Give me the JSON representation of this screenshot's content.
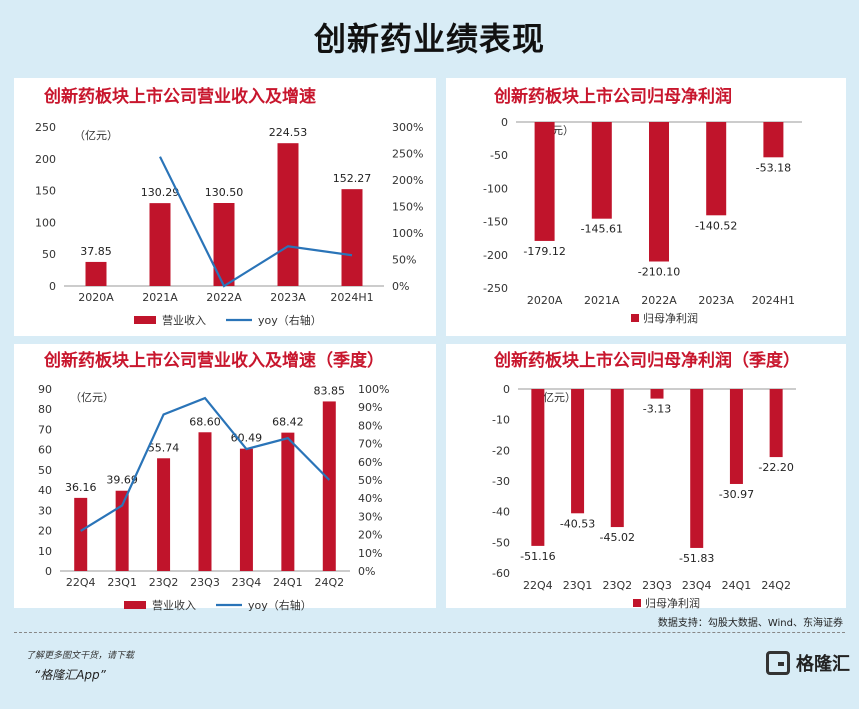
{
  "title": "创新药业绩表现",
  "source": "数据支持：勾股大数据、Wind、东海证券",
  "footer": {
    "note": "了解更多图文干货，请下载",
    "app": "“格隆汇App”",
    "logo": "格隆汇"
  },
  "chart_data": [
    {
      "type": "bar",
      "title": "创新药板块上市公司营业收入及增速",
      "unit": "（亿元）",
      "categories": [
        "2020A",
        "2021A",
        "2022A",
        "2023A",
        "2024H1"
      ],
      "series": [
        {
          "name": "营业收入",
          "values": [
            37.85,
            130.29,
            130.5,
            224.53,
            152.27
          ],
          "color": "#c0142b",
          "axis": "left"
        },
        {
          "name": "yoy（右轴）",
          "type": "line",
          "values": [
            null,
            244,
            0,
            75,
            58
          ],
          "color": "#2a74b8",
          "axis": "right"
        }
      ],
      "ylim": [
        0,
        250
      ],
      "yticks": [
        0,
        50,
        100,
        150,
        200,
        250
      ],
      "y2lim": [
        0,
        300
      ],
      "y2ticks": [
        "0%",
        "50%",
        "100%",
        "150%",
        "200%",
        "250%",
        "300%"
      ],
      "legend": "bottom"
    },
    {
      "type": "bar",
      "title": "创新药板块上市公司归母净利润",
      "unit": "（亿元）",
      "categories": [
        "2020A",
        "2021A",
        "2022A",
        "2023A",
        "2024H1"
      ],
      "series": [
        {
          "name": "归母净利润",
          "values": [
            -179.12,
            -145.61,
            -210.1,
            -140.52,
            -53.18
          ],
          "color": "#c0142b"
        }
      ],
      "labels": [
        "-179.12",
        "-145.61",
        "-210.10",
        "-140.52",
        "-53.18"
      ],
      "ylim": [
        -250,
        0
      ],
      "yticks": [
        0,
        -50,
        -100,
        -150,
        -200,
        -250
      ],
      "legend": "bottom"
    },
    {
      "type": "bar",
      "title": "创新药板块上市公司营业收入及增速（季度）",
      "unit": "（亿元）",
      "categories": [
        "22Q4",
        "23Q1",
        "23Q2",
        "23Q3",
        "23Q4",
        "24Q1",
        "24Q2"
      ],
      "series": [
        {
          "name": "营业收入",
          "values": [
            36.16,
            39.69,
            55.74,
            68.6,
            60.49,
            68.42,
            83.85
          ],
          "color": "#c0142b",
          "axis": "left"
        },
        {
          "name": "yoy（右轴）",
          "type": "line",
          "values": [
            22,
            36,
            86,
            95,
            67,
            73,
            50
          ],
          "color": "#2a74b8",
          "axis": "right"
        }
      ],
      "ylim": [
        0,
        90
      ],
      "yticks": [
        0,
        10,
        20,
        30,
        40,
        50,
        60,
        70,
        80,
        90
      ],
      "y2lim": [
        0,
        100
      ],
      "y2ticks": [
        "0%",
        "10%",
        "20%",
        "30%",
        "40%",
        "50%",
        "60%",
        "70%",
        "80%",
        "90%",
        "100%"
      ],
      "legend": "bottom"
    },
    {
      "type": "bar",
      "title": "创新药板块上市公司归母净利润（季度）",
      "unit": "（亿元）",
      "categories": [
        "22Q4",
        "23Q1",
        "23Q2",
        "23Q3",
        "23Q4",
        "24Q1",
        "24Q2"
      ],
      "series": [
        {
          "name": "归母净利润",
          "values": [
            -51.16,
            -40.53,
            -45.02,
            -3.13,
            -51.83,
            -30.97,
            -22.2
          ],
          "color": "#c0142b"
        }
      ],
      "labels": [
        "-51.16",
        "-40.53",
        "-45.02",
        "-3.13",
        "-51.83",
        "-30.97",
        "-22.20"
      ],
      "ylim": [
        -60,
        0
      ],
      "yticks": [
        0,
        -10,
        -20,
        -30,
        -40,
        -50,
        -60
      ],
      "legend": "bottom"
    }
  ]
}
